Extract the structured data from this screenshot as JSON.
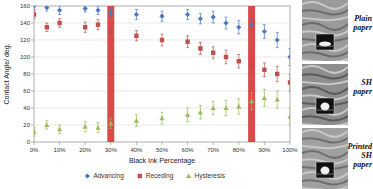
{
  "chart_data": {
    "type": "scatter",
    "x_label": "Black Ink Percentage",
    "y_label": "Contact Angle/ deg.",
    "x": [
      0,
      5,
      10,
      20,
      25,
      30,
      40,
      50,
      60,
      65,
      70,
      75,
      80,
      85,
      90,
      95,
      100
    ],
    "series": [
      {
        "name": "Advancing",
        "color": "#4a78c2",
        "marker": "diamond",
        "values": [
          160,
          158,
          155,
          157,
          155,
          152,
          150,
          148,
          150,
          145,
          147,
          140,
          135,
          138,
          130,
          120,
          100
        ],
        "errors": [
          4,
          4,
          5,
          4,
          5,
          5,
          6,
          6,
          6,
          6,
          7,
          7,
          8,
          8,
          8,
          9,
          10
        ]
      },
      {
        "name": "Receding",
        "color": "#c0504d",
        "marker": "square",
        "values": [
          150,
          135,
          140,
          135,
          138,
          130,
          125,
          120,
          118,
          110,
          105,
          100,
          95,
          90,
          85,
          80,
          70
        ],
        "errors": [
          5,
          5,
          5,
          6,
          6,
          6,
          6,
          7,
          7,
          7,
          7,
          8,
          8,
          8,
          8,
          9,
          10
        ]
      },
      {
        "name": "Hysteresis",
        "color": "#9bbb59",
        "marker": "triangle",
        "values": [
          12,
          20,
          15,
          18,
          17,
          22,
          25,
          28,
          32,
          35,
          40,
          40,
          42,
          48,
          52,
          50,
          30
        ],
        "errors": [
          5,
          5,
          5,
          6,
          6,
          6,
          7,
          7,
          8,
          8,
          8,
          9,
          9,
          10,
          10,
          10,
          10
        ]
      }
    ],
    "thresholds": [
      30,
      85
    ],
    "xlim": [
      0,
      100
    ],
    "xticks": [
      {
        "value": 0,
        "label": "0%"
      },
      {
        "value": 10,
        "label": "10%"
      },
      {
        "value": 20,
        "label": "20%"
      },
      {
        "value": 30,
        "label": "30%"
      },
      {
        "value": 40,
        "label": "40%"
      },
      {
        "value": 50,
        "label": "50%"
      },
      {
        "value": 60,
        "label": "60%"
      },
      {
        "value": 70,
        "label": "70%"
      },
      {
        "value": 80,
        "label": "80%"
      },
      {
        "value": 90,
        "label": "90%"
      },
      {
        "value": 100,
        "label": "100%"
      }
    ],
    "ylim": [
      0,
      160
    ],
    "yticks": [
      0,
      20,
      40,
      60,
      80,
      100,
      120,
      140,
      160
    ],
    "grid": true,
    "legend": "bottom"
  },
  "images": [
    {
      "label": "Plain paper"
    },
    {
      "label": "SH paper"
    },
    {
      "label": "Printed SH paper"
    }
  ]
}
